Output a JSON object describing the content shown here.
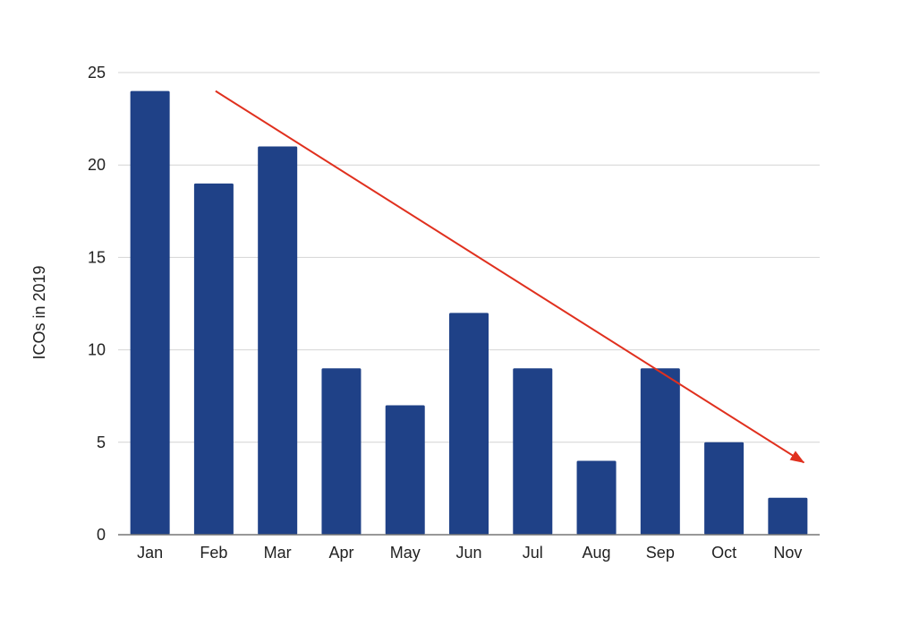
{
  "chart_data": {
    "type": "bar",
    "title": "",
    "xlabel": "",
    "ylabel": "ICOs in 2019",
    "categories": [
      "Jan",
      "Feb",
      "Mar",
      "Apr",
      "May",
      "Jun",
      "Jul",
      "Aug",
      "Sep",
      "Oct",
      "Nov"
    ],
    "values": [
      24,
      19,
      21,
      9,
      7,
      12,
      9,
      4,
      9,
      5,
      2
    ],
    "ylim": [
      0,
      25
    ],
    "yticks": [
      0,
      5,
      10,
      15,
      20,
      25
    ],
    "grid": true,
    "legend": "none",
    "annotations": [
      {
        "type": "trend-arrow",
        "from": {
          "x": "Feb",
          "y": 24
        },
        "to": {
          "x": "Nov",
          "y": 4
        }
      }
    ]
  },
  "colors": {
    "bar": "#1f4187",
    "grid": "#d4d4d4",
    "axis": "#777777",
    "arrow": "#e0301e"
  }
}
